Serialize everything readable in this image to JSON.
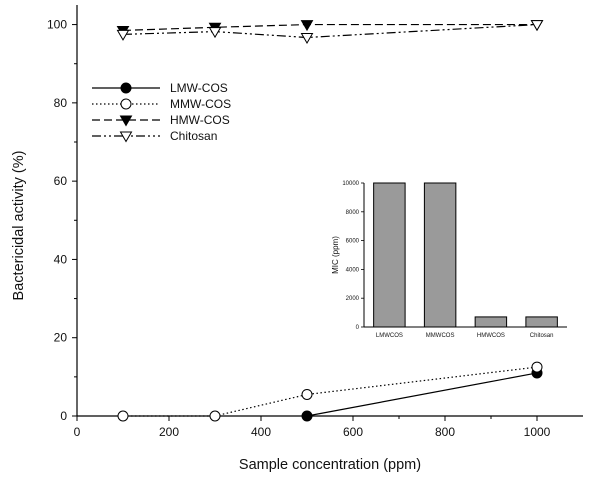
{
  "chart_data": [
    {
      "type": "line",
      "title": "",
      "xlabel": "Sample concentration (ppm)",
      "ylabel": "Bactericidal activity (%)",
      "xlim": [
        0,
        1100
      ],
      "ylim": [
        0,
        105
      ],
      "xticks": [
        0,
        200,
        400,
        600,
        800,
        1000
      ],
      "yticks": [
        0,
        20,
        40,
        60,
        80,
        100
      ],
      "grid": false,
      "legend_position": "upper-left",
      "series": [
        {
          "name": "LMW-COS",
          "marker": "filled-circle",
          "line": "solid",
          "color": "#000000",
          "x": [
            500,
            1000
          ],
          "y": [
            0,
            11
          ]
        },
        {
          "name": "MMW-COS",
          "marker": "open-circle",
          "line": "dotted",
          "color": "#000000",
          "x": [
            100,
            300,
            500,
            1000
          ],
          "y": [
            0,
            0,
            5.5,
            12.5
          ]
        },
        {
          "name": "HMW-COS",
          "marker": "filled-triangle-down",
          "line": "dashed",
          "color": "#000000",
          "x": [
            100,
            300,
            500,
            1000
          ],
          "y": [
            98.5,
            99.3,
            100,
            100
          ]
        },
        {
          "name": "Chitosan",
          "marker": "open-triangle-down",
          "line": "dash-dot-dot",
          "color": "#000000",
          "x": [
            100,
            300,
            500,
            1000
          ],
          "y": [
            97.5,
            98.2,
            96.7,
            100
          ]
        }
      ]
    },
    {
      "type": "bar",
      "title": "",
      "xlabel": "",
      "ylabel": "MIC (ppm)",
      "ylim": [
        0,
        10000
      ],
      "yticks": [
        0,
        2000,
        4000,
        6000,
        8000,
        10000
      ],
      "categories": [
        "LMWCOS",
        "MMWCOS",
        "HMWCOS",
        "Chitosan"
      ],
      "values": [
        10000,
        10000,
        700,
        700
      ],
      "bar_color": "#9a9a9a"
    }
  ]
}
